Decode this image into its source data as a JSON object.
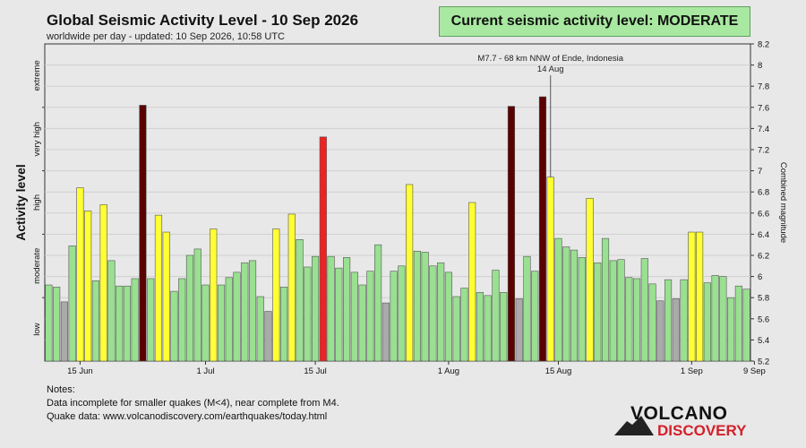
{
  "header": {
    "title": "Global Seismic Activity Level - 10 Sep 2026",
    "subtitle": "worldwide per day - updated: 10 Sep 2026, 10:58 UTC",
    "current_level": "Current seismic activity level: MODERATE"
  },
  "notes": {
    "heading": "Notes:",
    "line1": "Data incomplete for smaller quakes (M<4), near complete from M4.",
    "line2": "Quake data: www.volcanodiscovery.com/earthquakes/today.html"
  },
  "logo": {
    "line1": "VOLCANO",
    "line2": "DISCOVERY"
  },
  "colors": {
    "background": "#e8e8e8",
    "green": "#99e091",
    "yellow": "#ffff33",
    "red": "#ee2222",
    "darkred": "#5a0000",
    "gray": "#aaaaaa",
    "logo_red": "#d4202a"
  },
  "chart_data": {
    "type": "bar",
    "ylabel_left": "Activity level",
    "ylabel_right": "Combined magnitude",
    "level_labels": [
      "low",
      "moderate",
      "high",
      "very high",
      "extreme"
    ],
    "ylim": [
      5.2,
      8.2
    ],
    "yticks": [
      5.2,
      5.4,
      5.6,
      5.8,
      6,
      6.2,
      6.4,
      6.6,
      6.8,
      7,
      7.2,
      7.4,
      7.6,
      7.8,
      8,
      8.2
    ],
    "x_ticks": [
      {
        "label": "15 Jun",
        "day": 15
      },
      {
        "label": "1 Jul",
        "day": 31
      },
      {
        "label": "15 Jul",
        "day": 45
      },
      {
        "label": "1 Aug",
        "day": 62
      },
      {
        "label": "15 Aug",
        "day": 76
      },
      {
        "label": "1 Sep",
        "day": 93
      },
      {
        "label": "9 Sep",
        "day": 101
      }
    ],
    "start_date": "11 Jun 2026",
    "annotation": {
      "line1": "M7.7 - 68 km NNW of Ende, Indonesia",
      "line2": "14 Aug",
      "day": 75
    },
    "values": [
      5.92,
      5.9,
      5.76,
      6.29,
      6.84,
      6.62,
      5.96,
      6.68,
      6.15,
      5.91,
      5.91,
      5.98,
      7.62,
      5.98,
      6.58,
      6.42,
      5.86,
      5.98,
      6.2,
      6.26,
      5.92,
      6.45,
      5.92,
      5.99,
      6.04,
      6.13,
      6.15,
      5.81,
      5.67,
      6.45,
      5.9,
      6.59,
      6.35,
      6.09,
      6.19,
      7.32,
      6.19,
      6.08,
      6.18,
      6.04,
      5.92,
      6.05,
      6.3,
      5.75,
      6.05,
      6.1,
      6.87,
      6.24,
      6.23,
      6.1,
      6.13,
      6.04,
      5.81,
      5.89,
      6.7,
      5.85,
      5.82,
      6.06,
      5.85,
      7.61,
      5.79,
      6.19,
      6.05,
      7.7,
      6.94,
      6.36,
      6.28,
      6.25,
      6.18,
      6.74,
      6.13,
      6.36,
      6.15,
      6.16,
      5.99,
      5.98,
      6.17,
      5.93,
      5.77,
      5.97,
      5.79,
      5.97,
      6.42,
      6.42,
      5.94,
      6.01,
      6.0,
      5.8,
      5.91,
      5.88
    ],
    "categories_color": [
      "g",
      "g",
      "x",
      "g",
      "y",
      "y",
      "g",
      "y",
      "g",
      "g",
      "g",
      "g",
      "d",
      "g",
      "y",
      "y",
      "g",
      "g",
      "g",
      "g",
      "g",
      "y",
      "g",
      "g",
      "g",
      "g",
      "g",
      "g",
      "x",
      "y",
      "g",
      "y",
      "g",
      "g",
      "g",
      "r",
      "g",
      "g",
      "g",
      "g",
      "g",
      "g",
      "g",
      "x",
      "g",
      "g",
      "y",
      "g",
      "g",
      "g",
      "g",
      "g",
      "g",
      "g",
      "y",
      "g",
      "g",
      "g",
      "g",
      "d",
      "x",
      "g",
      "g",
      "d",
      "y",
      "g",
      "g",
      "g",
      "g",
      "y",
      "g",
      "g",
      "g",
      "g",
      "g",
      "g",
      "g",
      "g",
      "x",
      "g",
      "x",
      "g",
      "y",
      "y",
      "g",
      "g",
      "g",
      "g",
      "g",
      "g"
    ]
  }
}
